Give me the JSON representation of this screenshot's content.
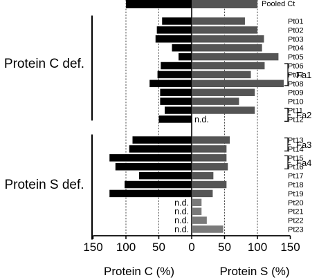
{
  "chart_data": {
    "type": "bar",
    "orientation": "horizontal",
    "title": "",
    "xlim": [
      -150,
      150
    ],
    "x_ticks": [
      -150,
      -100,
      -50,
      0,
      50,
      100,
      150
    ],
    "x_tick_labels": [
      "150",
      "100",
      "50",
      "0",
      "50",
      "100",
      "150"
    ],
    "gridlines": [
      -100,
      -50,
      50,
      100
    ],
    "xlabel_left": "Protein C (%)",
    "xlabel_right": "Protein S (%)",
    "colors": {
      "protein_c": "#000000",
      "protein_s": "#555555",
      "nd_s": "#7a7a7a"
    },
    "reference": {
      "label": "Pooled Ct",
      "protein_c": 100,
      "protein_s": 100
    },
    "groups": [
      {
        "label": "Protein C def.",
        "first": "Pt01",
        "last": "Pt12"
      },
      {
        "label": "Protein S def.",
        "first": "Pt13",
        "last": "Pt23"
      }
    ],
    "families": [
      {
        "label": "Fa1",
        "members": [
          "Pt06",
          "Pt07",
          "Pt08"
        ]
      },
      {
        "label": "Fa2",
        "members": [
          "Pt11",
          "Pt12"
        ]
      },
      {
        "label": "Fa3",
        "members": [
          "Pt13",
          "Pt14"
        ]
      },
      {
        "label": "Fa4",
        "members": [
          "Pt15",
          "Pt16"
        ]
      }
    ],
    "nd_label": "n.d.",
    "patients": [
      {
        "id": "Pt01",
        "protein_c": 45,
        "protein_s": 81
      },
      {
        "id": "Pt02",
        "protein_c": 53,
        "protein_s": 100
      },
      {
        "id": "Pt03",
        "protein_c": 55,
        "protein_s": 110
      },
      {
        "id": "Pt04",
        "protein_c": 30,
        "protein_s": 107
      },
      {
        "id": "Pt05",
        "protein_c": 20,
        "protein_s": 132
      },
      {
        "id": "Pt06",
        "protein_c": 47,
        "protein_s": 111
      },
      {
        "id": "Pt07",
        "protein_c": 52,
        "protein_s": 90
      },
      {
        "id": "Pt08",
        "protein_c": 64,
        "protein_s": 140
      },
      {
        "id": "Pt09",
        "protein_c": 48,
        "protein_s": 96
      },
      {
        "id": "Pt10",
        "protein_c": 48,
        "protein_s": 72
      },
      {
        "id": "Pt11",
        "protein_c": 41,
        "protein_s": 96
      },
      {
        "id": "Pt12",
        "protein_c": 50,
        "protein_s": null
      },
      {
        "id": "Pt13",
        "protein_c": 90,
        "protein_s": 58
      },
      {
        "id": "Pt14",
        "protein_c": 95,
        "protein_s": 53
      },
      {
        "id": "Pt15",
        "protein_c": 125,
        "protein_s": 53
      },
      {
        "id": "Pt16",
        "protein_c": 116,
        "protein_s": 55
      },
      {
        "id": "Pt17",
        "protein_c": 80,
        "protein_s": 33
      },
      {
        "id": "Pt18",
        "protein_c": 102,
        "protein_s": 53
      },
      {
        "id": "Pt19",
        "protein_c": 125,
        "protein_s": 32
      },
      {
        "id": "Pt20",
        "protein_c": null,
        "protein_s": 15
      },
      {
        "id": "Pt21",
        "protein_c": null,
        "protein_s": 15
      },
      {
        "id": "Pt22",
        "protein_c": null,
        "protein_s": 23
      },
      {
        "id": "Pt23",
        "protein_c": null,
        "protein_s": 48
      }
    ]
  }
}
